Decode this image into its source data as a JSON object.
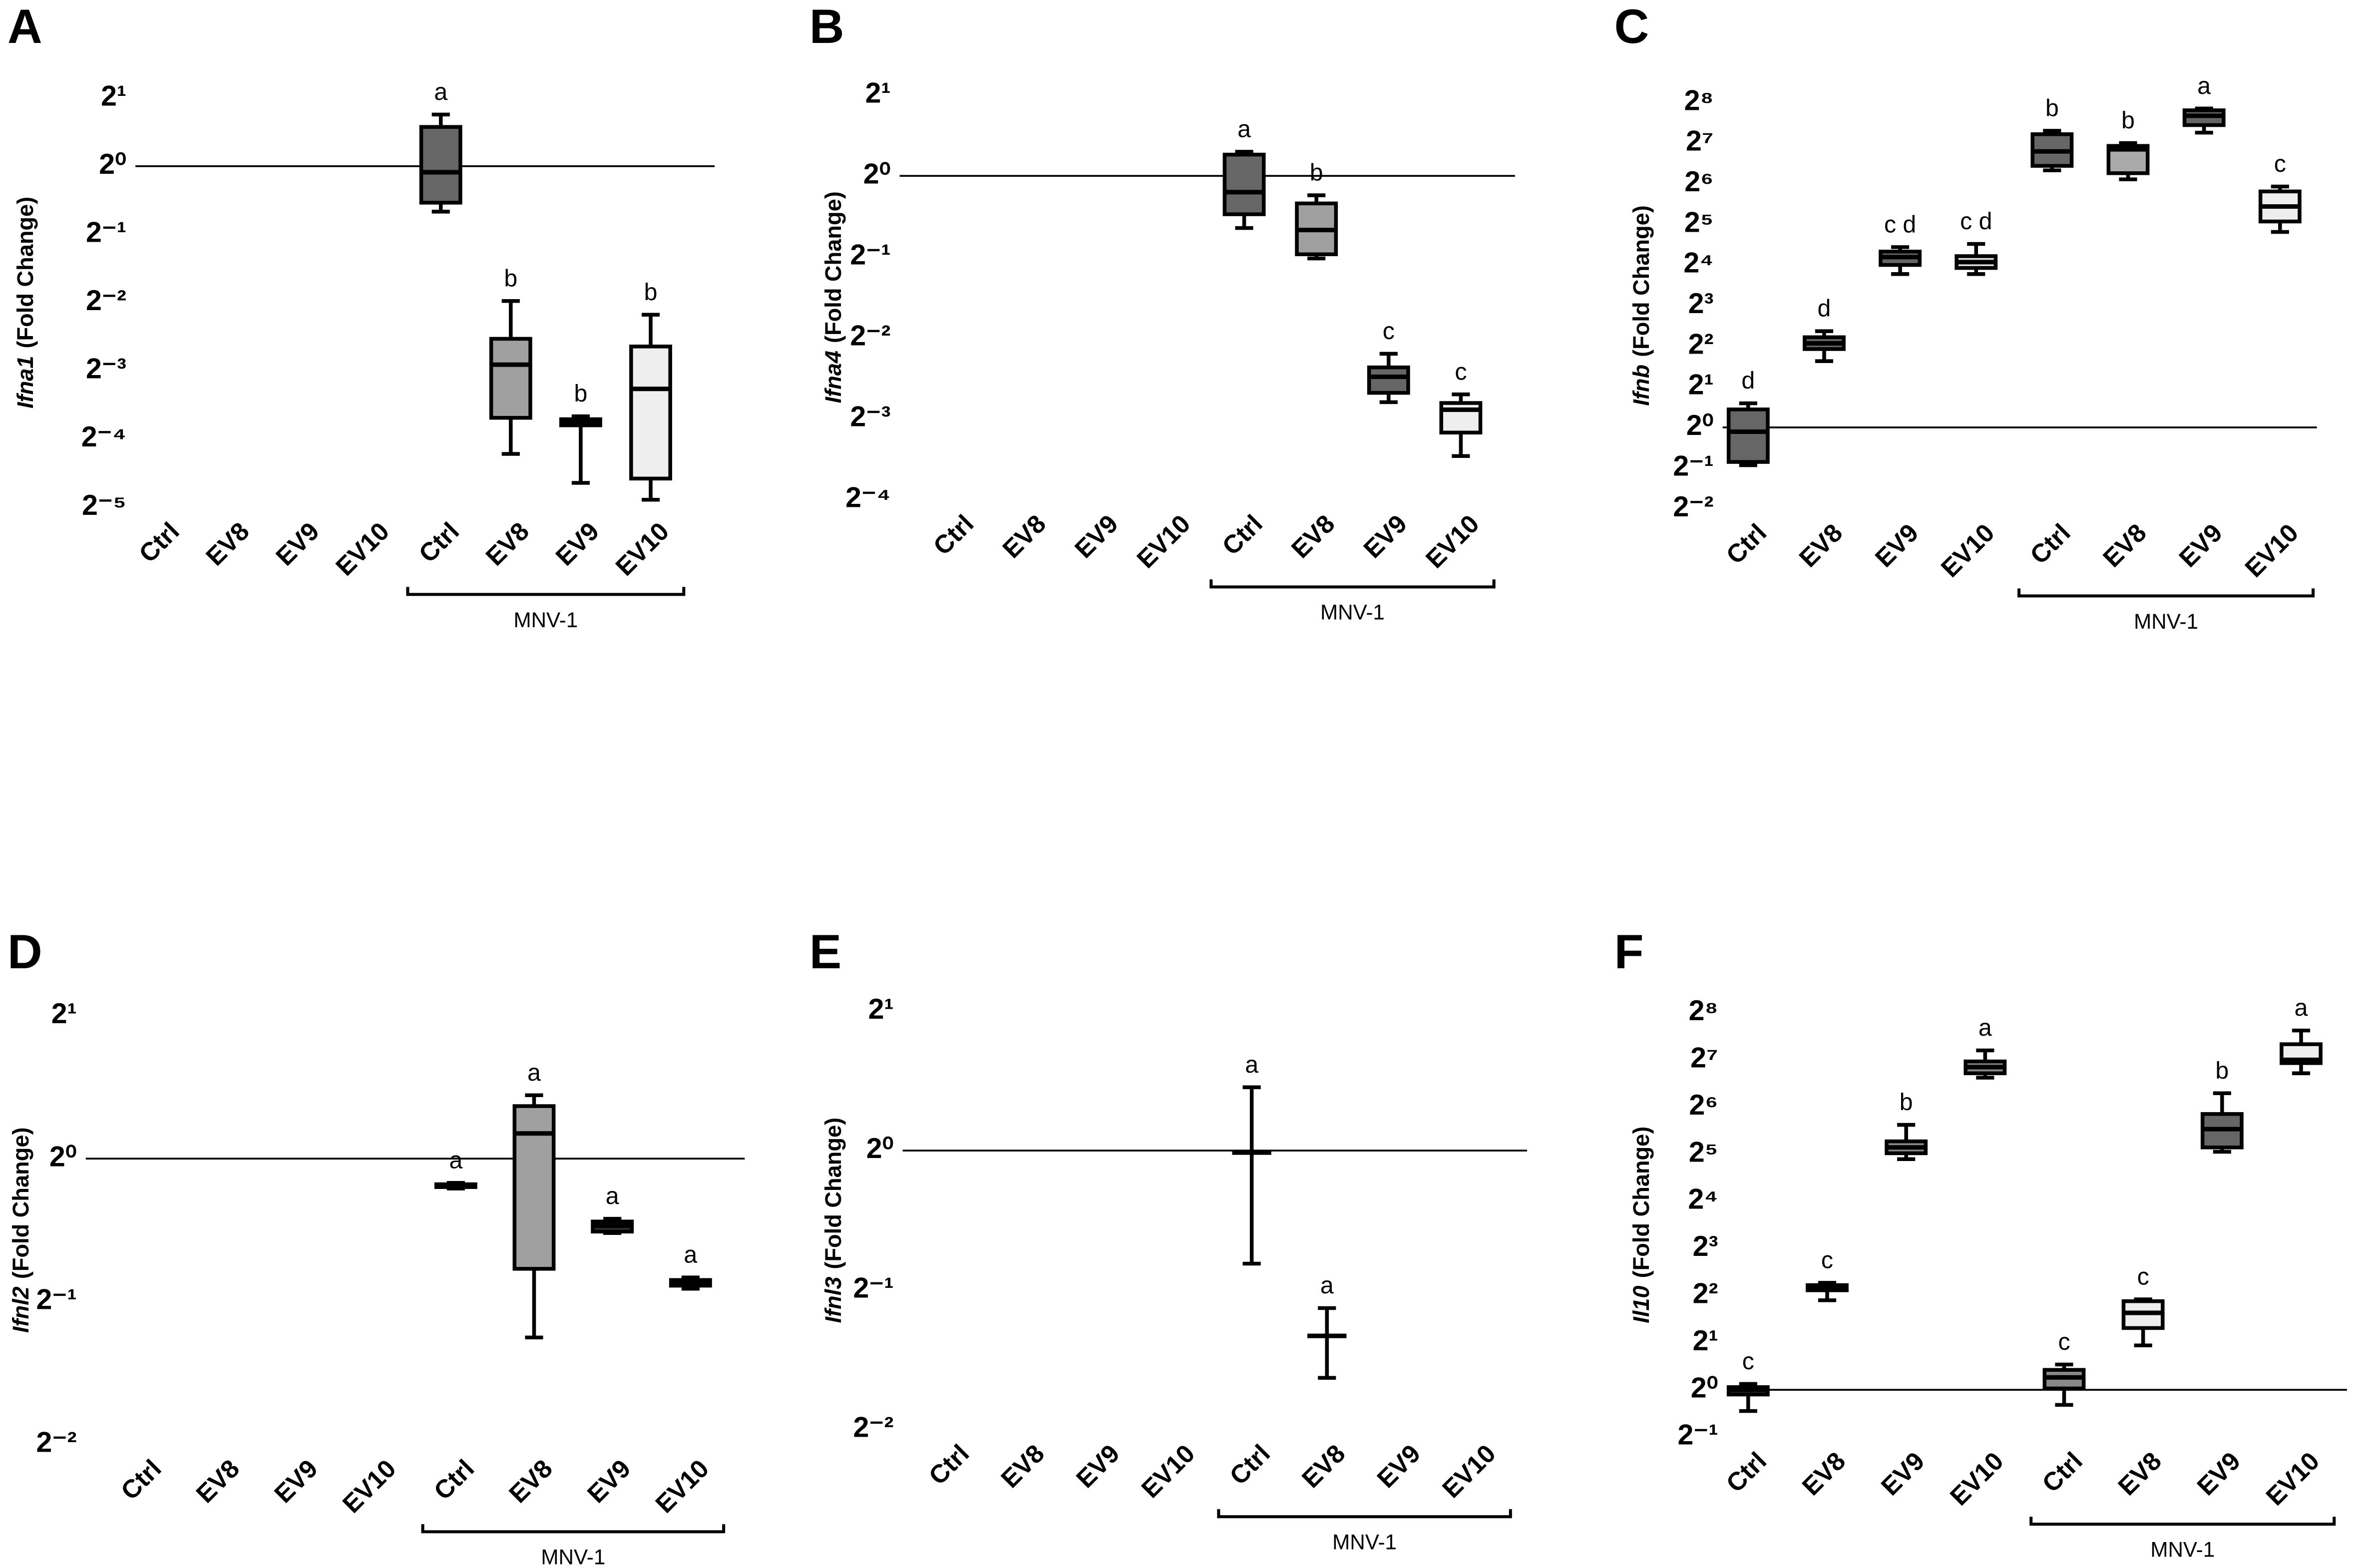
{
  "chart_data": [
    {
      "type": "box",
      "panel": "A",
      "ylabel_gene": "Ifna1",
      "ylabel_unit": "(Fold Change)",
      "log_base": 2,
      "ylim": [
        0.03125,
        2
      ],
      "yticks": [
        {
          "value": 2,
          "label": "2¹"
        },
        {
          "value": 1,
          "label": "2⁰"
        },
        {
          "value": 0.5,
          "label": "2⁻¹"
        },
        {
          "value": 0.25,
          "label": "2⁻²"
        },
        {
          "value": 0.125,
          "label": "2⁻³"
        },
        {
          "value": 0.0625,
          "label": "2⁻⁴"
        },
        {
          "value": 0.03125,
          "label": "2⁻⁵"
        }
      ],
      "baseline": 1,
      "groups": [
        {
          "name": null,
          "categories": [
            "Ctrl",
            "EV8",
            "EV9",
            "EV10"
          ],
          "boxes": [
            null,
            null,
            null,
            null
          ]
        },
        {
          "name": "MNV-1",
          "categories": [
            "Ctrl",
            "EV8",
            "EV9",
            "EV10"
          ],
          "boxes": [
            {
              "min": 0.63,
              "q1": 0.69,
              "median": 0.94,
              "q3": 1.49,
              "max": 1.69,
              "color": "#666666",
              "letter": "a"
            },
            {
              "min": 0.0537,
              "q1": 0.0775,
              "median": 0.133,
              "q3": 0.173,
              "max": 0.254,
              "color": "#a0a0a0",
              "letter": "b"
            },
            {
              "min": 0.04,
              "q1": 0.0718,
              "median": 0.0737,
              "q3": 0.0764,
              "max": 0.0787,
              "color": "#444444",
              "letter": "b"
            },
            {
              "min": 0.0337,
              "q1": 0.0418,
              "median": 0.104,
              "q3": 0.16,
              "max": 0.221,
              "color": "#eeeeee",
              "letter": "b"
            }
          ]
        }
      ]
    },
    {
      "type": "box",
      "panel": "B",
      "ylabel_gene": "Ifna4",
      "ylabel_unit": "(Fold Change)",
      "log_base": 2,
      "ylim": [
        0.0625,
        2
      ],
      "yticks": [
        {
          "value": 2,
          "label": "2¹"
        },
        {
          "value": 1,
          "label": "2⁰"
        },
        {
          "value": 0.5,
          "label": "2⁻¹"
        },
        {
          "value": 0.25,
          "label": "2⁻²"
        },
        {
          "value": 0.125,
          "label": "2⁻³"
        },
        {
          "value": 0.0625,
          "label": "2⁻⁴"
        }
      ],
      "baseline": 1,
      "groups": [
        {
          "name": null,
          "categories": [
            "Ctrl",
            "EV8",
            "EV9",
            "EV10"
          ],
          "boxes": [
            null,
            null,
            null,
            null
          ]
        },
        {
          "name": "MNV-1",
          "categories": [
            "Ctrl",
            "EV8",
            "EV9",
            "EV10"
          ],
          "boxes": [
            {
              "min": 0.64,
              "q1": 0.72,
              "median": 0.87,
              "q3": 1.2,
              "max": 1.23,
              "color": "#666666",
              "letter": "a"
            },
            {
              "min": 0.493,
              "q1": 0.511,
              "median": 0.629,
              "q3": 0.79,
              "max": 0.847,
              "color": "#a0a0a0",
              "letter": "b"
            },
            {
              "min": 0.144,
              "q1": 0.156,
              "median": 0.179,
              "q3": 0.194,
              "max": 0.218,
              "color": "#666666",
              "letter": "c"
            },
            {
              "min": 0.0908,
              "q1": 0.111,
              "median": 0.135,
              "q3": 0.143,
              "max": 0.154,
              "color": "#eeeeee",
              "letter": "c"
            }
          ]
        }
      ]
    },
    {
      "type": "box",
      "panel": "C",
      "ylabel_gene": "Ifnb",
      "ylabel_unit": "(Fold Change)",
      "log_base": 2,
      "ylim": [
        0.25,
        256
      ],
      "yticks": [
        {
          "value": 256,
          "label": "2⁸"
        },
        {
          "value": 128,
          "label": "2⁷"
        },
        {
          "value": 64,
          "label": "2⁶"
        },
        {
          "value": 32,
          "label": "2⁵"
        },
        {
          "value": 16,
          "label": "2⁴"
        },
        {
          "value": 8,
          "label": "2³"
        },
        {
          "value": 4,
          "label": "2²"
        },
        {
          "value": 2,
          "label": "2¹"
        },
        {
          "value": 1,
          "label": "2⁰"
        },
        {
          "value": 0.5,
          "label": "2⁻¹"
        },
        {
          "value": 0.25,
          "label": "2⁻²"
        }
      ],
      "baseline": 1,
      "groups": [
        {
          "name": null,
          "categories": [
            "Ctrl",
            "EV8",
            "EV9",
            "EV10"
          ],
          "boxes": [
            {
              "min": 0.525,
              "q1": 0.555,
              "median": 0.93,
              "q3": 1.36,
              "max": 1.51,
              "color": "#666666",
              "letter": "d"
            },
            {
              "min": 3.1,
              "q1": 3.81,
              "median": 4.2,
              "q3": 4.66,
              "max": 5.17,
              "color": "#666666",
              "letter": "d"
            },
            {
              "min": 13.7,
              "q1": 16,
              "median": 18.3,
              "q3": 20.1,
              "max": 21.7,
              "color": "#666666",
              "letter": "c d"
            },
            {
              "min": 13.7,
              "q1": 15.2,
              "median": 16.8,
              "q3": 18.6,
              "max": 22.9,
              "color": "#dddddd",
              "letter": "c d"
            }
          ]
        },
        {
          "name": "MNV-1",
          "categories": [
            "Ctrl",
            "EV8",
            "EV9",
            "EV10"
          ],
          "boxes": [
            {
              "min": 80.4,
              "q1": 86.8,
              "median": 111,
              "q3": 149,
              "max": 158,
              "color": "#666666",
              "letter": "b"
            },
            {
              "min": 69,
              "q1": 76.6,
              "median": 115,
              "q3": 122,
              "max": 128,
              "color": "#aaaaaa",
              "letter": "b"
            },
            {
              "min": 153,
              "q1": 174,
              "median": 204,
              "q3": 224,
              "max": 231,
              "color": "#666666",
              "letter": "a"
            },
            {
              "min": 28.1,
              "q1": 33.6,
              "median": 43.4,
              "q3": 56.1,
              "max": 61,
              "color": "#eeeeee",
              "letter": "c"
            }
          ]
        }
      ]
    },
    {
      "type": "box",
      "panel": "D",
      "ylabel_gene": "Ifnl2",
      "ylabel_unit": "(Fold Change)",
      "log_base": 2,
      "ylim": [
        0.25,
        2
      ],
      "yticks": [
        {
          "value": 2,
          "label": "2¹"
        },
        {
          "value": 1,
          "label": "2⁰"
        },
        {
          "value": 0.5,
          "label": "2⁻¹"
        },
        {
          "value": 0.25,
          "label": "2⁻²"
        }
      ],
      "baseline": 1,
      "groups": [
        {
          "name": null,
          "categories": [
            "Ctrl",
            "EV8",
            "EV9",
            "EV10"
          ],
          "boxes": [
            null,
            null,
            null,
            null
          ]
        },
        {
          "name": "MNV-1",
          "categories": [
            "Ctrl",
            "EV8",
            "EV9",
            "EV10"
          ],
          "boxes": [
            {
              "min": 0.865,
              "q1": 0.871,
              "median": 0.877,
              "q3": 0.883,
              "max": 0.889,
              "color": "#333333",
              "letter": "a"
            },
            {
              "min": 0.42,
              "q1": 0.586,
              "median": 1.13,
              "q3": 1.29,
              "max": 1.36,
              "color": "#a0a0a0",
              "letter": "a"
            },
            {
              "min": 0.697,
              "q1": 0.702,
              "median": 0.722,
              "q3": 0.737,
              "max": 0.747,
              "color": "#333333",
              "letter": "a"
            },
            {
              "min": 0.532,
              "q1": 0.54,
              "median": 0.547,
              "q3": 0.555,
              "max": 0.562,
              "color": "#333333",
              "letter": "a"
            }
          ]
        }
      ]
    },
    {
      "type": "box",
      "panel": "E",
      "ylabel_gene": "Ifnl3",
      "ylabel_unit": "(Fold Change)",
      "log_base": 2,
      "ylim": [
        0.25,
        2
      ],
      "yticks": [
        {
          "value": 2,
          "label": "2¹"
        },
        {
          "value": 1,
          "label": "2⁰"
        },
        {
          "value": 0.5,
          "label": "2⁻¹"
        },
        {
          "value": 0.25,
          "label": "2⁻²"
        }
      ],
      "baseline": 1,
      "groups": [
        {
          "name": null,
          "categories": [
            "Ctrl",
            "EV8",
            "EV9",
            "EV10"
          ],
          "boxes": [
            null,
            null,
            null,
            null
          ]
        },
        {
          "name": "MNV-1",
          "categories": [
            "Ctrl",
            "EV8",
            "EV9",
            "EV10"
          ],
          "boxes": [
            {
              "min": 0.57,
              "q1": 0.99,
              "median": 0.99,
              "q3": 0.99,
              "max": 1.37,
              "color": "#000000",
              "letter": "a"
            },
            {
              "min": 0.323,
              "q1": 0.398,
              "median": 0.398,
              "q3": 0.398,
              "max": 0.457,
              "color": "#000000",
              "letter": "a"
            },
            null,
            null
          ]
        }
      ]
    },
    {
      "type": "box",
      "panel": "F",
      "ylabel_gene": "Il10",
      "ylabel_unit": "(Fold Change)",
      "log_base": 2,
      "ylim": [
        0.5,
        256
      ],
      "yticks": [
        {
          "value": 256,
          "label": "2⁸"
        },
        {
          "value": 128,
          "label": "2⁷"
        },
        {
          "value": 64,
          "label": "2⁶"
        },
        {
          "value": 32,
          "label": "2⁵"
        },
        {
          "value": 16,
          "label": "2⁴"
        },
        {
          "value": 8,
          "label": "2³"
        },
        {
          "value": 4,
          "label": "2²"
        },
        {
          "value": 2,
          "label": "2¹"
        },
        {
          "value": 1,
          "label": "2⁰"
        },
        {
          "value": 0.5,
          "label": "2⁻¹"
        }
      ],
      "baseline": 1,
      "groups": [
        {
          "name": null,
          "categories": [
            "Ctrl",
            "EV8",
            "EV9",
            "EV10"
          ],
          "boxes": [
            {
              "min": 0.732,
              "q1": 0.933,
              "median": 1,
              "q3": 1.04,
              "max": 1.09,
              "color": "#333333",
              "letter": "c"
            },
            {
              "min": 3.73,
              "q1": 4.32,
              "median": 4.56,
              "q3": 4.66,
              "max": 4.82,
              "color": "#333333",
              "letter": "c"
            },
            {
              "min": 29.7,
              "q1": 32.4,
              "median": 35.3,
              "q3": 38.6,
              "max": 49.2,
              "color": "#888888",
              "letter": "b"
            },
            {
              "min": 98.4,
              "q1": 105,
              "median": 115,
              "q3": 125,
              "max": 147,
              "color": "#888888",
              "letter": "a"
            }
          ]
        },
        {
          "name": "MNV-1",
          "categories": [
            "Ctrl",
            "EV8",
            "EV9",
            "EV10"
          ],
          "boxes": [
            {
              "min": 0.801,
              "q1": 1.02,
              "median": 1.2,
              "q3": 1.34,
              "max": 1.45,
              "color": "#888888",
              "letter": "c"
            },
            {
              "min": 1.92,
              "q1": 2.48,
              "median": 3.1,
              "q3": 3.68,
              "max": 3.78,
              "color": "#eeeeee",
              "letter": "c"
            },
            {
              "min": 33.1,
              "q1": 35.3,
              "median": 46.2,
              "q3": 57.7,
              "max": 78.3,
              "color": "#666666",
              "letter": "b"
            },
            {
              "min": 105,
              "q1": 122,
              "median": 128,
              "q3": 161,
              "max": 197,
              "color": "#eeeeee",
              "letter": "a"
            }
          ]
        }
      ]
    }
  ]
}
